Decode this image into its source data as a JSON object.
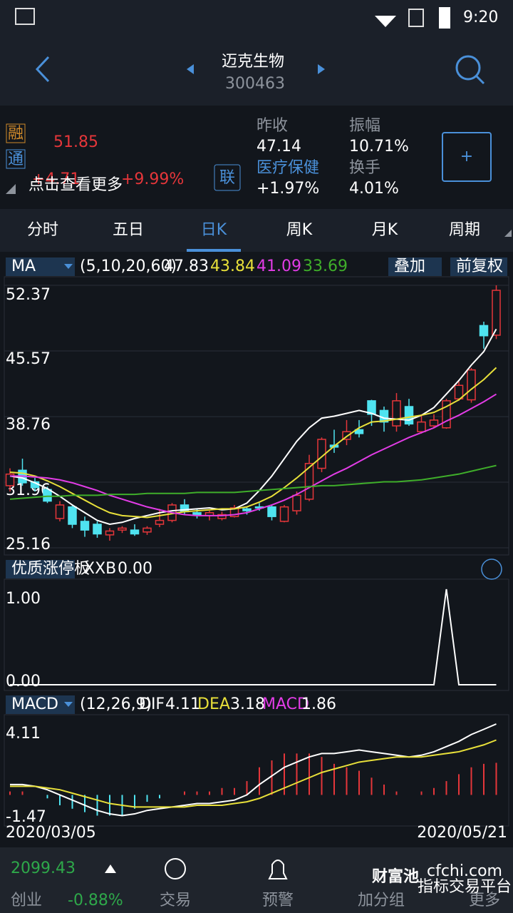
{
  "status_bar": {
    "time": "9:20"
  },
  "header": {
    "title": "迈克生物",
    "code": "300463"
  },
  "quote": {
    "price": "51.85",
    "change": "+4.71",
    "change_pct": "+9.99%",
    "overlay_hint": "点击查看更多",
    "badges": [
      "融",
      "通"
    ],
    "link_badge": "联",
    "stats": [
      {
        "label": "昨收",
        "value": "47.14"
      },
      {
        "label": "振幅",
        "value": "10.71%"
      },
      {
        "label": "医疗保健",
        "value": "+1.97%"
      },
      {
        "label": "换手",
        "value": "4.01%"
      }
    ],
    "add_button": "+"
  },
  "tabs": {
    "items": [
      "分时",
      "五日",
      "日K",
      "周K",
      "月K",
      "周期"
    ],
    "selected": 2
  },
  "chart_data": [
    {
      "type": "candlestick",
      "indicator": "MA",
      "params": "(5,10,20,60)",
      "overlay_button": "叠加",
      "adjust_button": "前复权",
      "ylim": [
        25.16,
        52.37
      ],
      "yticks": [
        25.16,
        31.96,
        38.76,
        45.57,
        52.37
      ],
      "grid": true,
      "up_color": "#e5363a",
      "down_color": "#4fe3f0",
      "candles": [
        [
          31.6,
          33.4,
          31.0,
          32.8
        ],
        [
          33.2,
          34.4,
          31.6,
          31.9
        ],
        [
          32.0,
          32.4,
          31.0,
          31.4
        ],
        [
          31.2,
          31.5,
          29.8,
          30.0
        ],
        [
          28.2,
          30.0,
          27.9,
          29.6
        ],
        [
          29.4,
          29.6,
          27.2,
          27.6
        ],
        [
          27.9,
          28.4,
          26.3,
          27.0
        ],
        [
          27.6,
          27.9,
          26.2,
          26.6
        ],
        [
          26.5,
          27.2,
          25.9,
          26.9
        ],
        [
          27.0,
          27.4,
          26.7,
          27.2
        ],
        [
          27.0,
          27.6,
          26.4,
          26.6
        ],
        [
          26.8,
          27.4,
          26.5,
          27.2
        ],
        [
          27.6,
          29.2,
          27.3,
          28.0
        ],
        [
          28.0,
          29.8,
          27.8,
          29.6
        ],
        [
          29.6,
          30.2,
          28.6,
          28.9
        ],
        [
          28.8,
          29.2,
          28.2,
          28.6
        ],
        [
          28.5,
          29.0,
          28.0,
          28.8
        ],
        [
          28.2,
          28.9,
          28.0,
          28.6
        ],
        [
          28.4,
          29.6,
          28.3,
          29.3
        ],
        [
          29.2,
          29.4,
          28.6,
          29.0
        ],
        [
          29.4,
          29.8,
          29.0,
          29.3
        ],
        [
          29.4,
          29.6,
          28.0,
          28.4
        ],
        [
          27.9,
          29.6,
          27.8,
          29.4
        ],
        [
          29.0,
          31.0,
          28.6,
          30.6
        ],
        [
          30.2,
          34.8,
          30.0,
          33.9
        ],
        [
          33.4,
          36.6,
          33.0,
          36.4
        ],
        [
          35.8,
          37.4,
          35.0,
          35.6
        ],
        [
          36.4,
          38.4,
          35.8,
          37.2
        ],
        [
          37.4,
          38.4,
          36.6,
          37.0
        ],
        [
          40.4,
          40.5,
          37.8,
          39.0
        ],
        [
          39.4,
          39.8,
          37.2,
          38.2
        ],
        [
          37.8,
          41.2,
          37.2,
          40.4
        ],
        [
          39.8,
          40.6,
          37.8,
          38.0
        ],
        [
          37.2,
          39.0,
          37.0,
          38.2
        ],
        [
          37.8,
          39.0,
          37.6,
          38.4
        ],
        [
          37.6,
          40.6,
          37.5,
          40.4
        ],
        [
          40.6,
          42.4,
          40.4,
          42.0
        ],
        [
          40.5,
          43.8,
          40.2,
          43.6
        ],
        [
          48.2,
          48.6,
          45.8,
          47.14
        ],
        [
          47.2,
          52.37,
          46.8,
          51.85
        ]
      ],
      "series": [
        {
          "color": "#ffffff",
          "values": [
            32.6,
            32.4,
            31.9,
            31.3,
            30.5,
            29.6,
            28.8,
            28.0,
            27.6,
            27.8,
            28.2,
            28.5,
            28.8,
            29.0,
            29.1,
            29.2,
            29.3,
            29.1,
            29.2,
            29.8,
            31.1,
            32.6,
            34.4,
            36.2,
            37.6,
            38.6,
            38.8,
            39.1,
            39.4,
            39.1,
            38.6,
            38.5,
            38.4,
            38.9,
            39.7,
            41.1,
            42.5,
            44.1,
            45.5,
            47.83
          ]
        },
        {
          "color": "#e8e03a",
          "values": [
            33.0,
            32.9,
            32.6,
            32.1,
            31.5,
            30.8,
            30.1,
            29.4,
            28.8,
            28.5,
            28.4,
            28.3,
            28.5,
            28.7,
            28.9,
            29.0,
            29.1,
            29.2,
            29.2,
            29.4,
            29.9,
            30.5,
            31.4,
            32.4,
            33.5,
            34.6,
            35.7,
            36.7,
            37.6,
            38.2,
            38.3,
            38.5,
            38.7,
            38.9,
            39.2,
            39.8,
            40.5,
            41.6,
            42.6,
            43.84
          ]
        },
        {
          "color": "#e23ce6",
          "values": [
            32.6,
            32.6,
            32.5,
            32.4,
            32.2,
            31.9,
            31.5,
            31.1,
            30.6,
            30.2,
            29.8,
            29.4,
            29.1,
            28.8,
            28.6,
            28.5,
            28.5,
            28.5,
            28.6,
            28.8,
            29.2,
            29.6,
            30.1,
            30.7,
            31.4,
            32.1,
            32.8,
            33.4,
            34.1,
            34.8,
            35.4,
            36.0,
            36.6,
            37.1,
            37.6,
            38.3,
            38.9,
            39.6,
            40.3,
            41.09
          ]
        },
        {
          "color": "#3fae2a",
          "values": [
            30.2,
            30.3,
            30.4,
            30.5,
            30.5,
            30.6,
            30.6,
            30.6,
            30.7,
            30.7,
            30.7,
            30.8,
            30.8,
            30.8,
            30.8,
            30.9,
            30.9,
            30.9,
            30.9,
            31.0,
            31.1,
            31.2,
            31.3,
            31.4,
            31.5,
            31.6,
            31.6,
            31.7,
            31.8,
            31.9,
            32.0,
            32.0,
            32.1,
            32.2,
            32.4,
            32.6,
            32.8,
            33.1,
            33.4,
            33.69
          ]
        }
      ]
    },
    {
      "type": "line",
      "indicator": "优质涨停板",
      "label": "XXB",
      "value_label": "0.00",
      "ylim": [
        0,
        1
      ],
      "yticks": [
        {
          "value": 0,
          "label": "0.00"
        },
        {
          "value": 1,
          "label": "1.00"
        }
      ],
      "series": [
        {
          "color": "#ffffff",
          "values": [
            0,
            0,
            0,
            0,
            0,
            0,
            0,
            0,
            0,
            0,
            0,
            0,
            0,
            0,
            0,
            0,
            0,
            0,
            0,
            0,
            0,
            0,
            0,
            0,
            0,
            0,
            0,
            0,
            0,
            0,
            0,
            0,
            0,
            0,
            0,
            1,
            0,
            0,
            0,
            0
          ]
        }
      ]
    },
    {
      "type": "macd",
      "indicator": "MACD",
      "params": "(12,26,9)",
      "ylim": [
        -1.47,
        4.11
      ],
      "yticks": [
        -1.47,
        4.11
      ],
      "x_labels": [
        "2020/03/05",
        "2020/05/21"
      ],
      "series": [
        {
          "name": "DIF",
          "color": "#ffffff",
          "values": [
            0.6,
            0.6,
            0.5,
            0.3,
            0.0,
            -0.3,
            -0.6,
            -0.9,
            -1.1,
            -1.2,
            -1.1,
            -0.9,
            -0.8,
            -0.7,
            -0.6,
            -0.5,
            -0.5,
            -0.4,
            -0.3,
            0.0,
            0.6,
            1.1,
            1.6,
            1.9,
            2.2,
            2.4,
            2.4,
            2.5,
            2.6,
            2.5,
            2.4,
            2.3,
            2.2,
            2.3,
            2.5,
            2.8,
            3.1,
            3.5,
            3.8,
            4.11
          ]
        },
        {
          "name": "DEA",
          "color": "#e8e03a",
          "values": [
            0.5,
            0.5,
            0.5,
            0.4,
            0.3,
            0.1,
            -0.1,
            -0.3,
            -0.5,
            -0.6,
            -0.7,
            -0.7,
            -0.7,
            -0.7,
            -0.7,
            -0.6,
            -0.6,
            -0.6,
            -0.5,
            -0.4,
            -0.2,
            0.1,
            0.4,
            0.7,
            1.0,
            1.3,
            1.5,
            1.7,
            1.9,
            2.0,
            2.1,
            2.2,
            2.2,
            2.2,
            2.3,
            2.4,
            2.5,
            2.7,
            2.9,
            3.18
          ]
        },
        {
          "name": "MACD",
          "color": "#e23ce6",
          "values": [
            0.2,
            0.2,
            0,
            -0.2,
            -0.6,
            -0.8,
            -1,
            -1.2,
            -1.2,
            -1.2,
            -0.8,
            -0.4,
            -0.2,
            0,
            0.2,
            0.2,
            0.2,
            0.4,
            0.4,
            0.8,
            1.6,
            2,
            2.4,
            2.4,
            2.4,
            2.2,
            1.8,
            1.6,
            1.4,
            1,
            0.6,
            0.2,
            0,
            0.2,
            0.4,
            0.8,
            1.2,
            1.6,
            1.8,
            1.86
          ]
        }
      ]
    }
  ],
  "footer": {
    "index_value": "2099.43",
    "index_name": "创业",
    "index_change": "-0.88%",
    "nav": [
      "交易",
      "预警",
      "加分组",
      "更多"
    ],
    "logo": {
      "name": "财富池",
      "site": "cfchi.com",
      "slogan": "指标交易平台"
    }
  }
}
